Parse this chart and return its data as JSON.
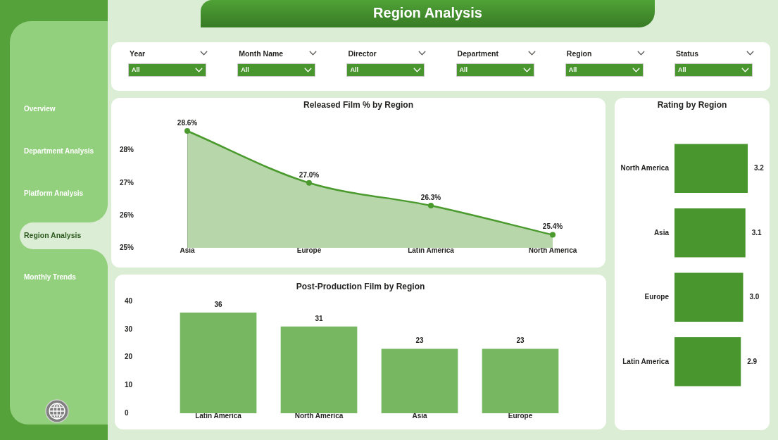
{
  "chart_data": [
    {
      "type": "other",
      "annotations": [
        "Overview",
        "Department Analysis",
        "Platform Analysis",
        "Region Analysis",
        "Monthly Trends"
      ]
    },
    {
      "type": "other",
      "title": "Region Analysis",
      "annotations": [
        "Year",
        "All",
        "Month Name",
        "All",
        "Director",
        "All",
        "Department",
        "All",
        "Region",
        "All",
        "Status",
        "All"
      ]
    },
    {
      "type": "area",
      "title": "Released Film % by Region",
      "categories": [
        "Asia",
        "Europe",
        "Latin America",
        "North America"
      ],
      "values": [
        28.6,
        27.0,
        26.3,
        25.4
      ],
      "value_labels": [
        "28.6%",
        "27.0%",
        "26.3%",
        "25.4%"
      ],
      "color": "#4a9a2e",
      "marker": "circle",
      "line_style": "solid",
      "ylim": [
        25,
        28.6
      ],
      "yticks": [
        {
          "value": 25,
          "label": "25%"
        },
        {
          "value": 26,
          "label": "26%"
        },
        {
          "value": 27,
          "label": "27%"
        },
        {
          "value": 28,
          "label": "28%"
        }
      ]
    },
    {
      "type": "bar",
      "title": "Post-Production Film by Region",
      "categories": [
        "Latin America",
        "North America",
        "Asia",
        "Europe"
      ],
      "values": [
        36,
        31,
        23,
        23
      ],
      "color": "#77b762",
      "data_labels": true,
      "ylim": [
        0,
        40
      ],
      "yticks": [
        0,
        10,
        20,
        30,
        40
      ]
    },
    {
      "type": "bar",
      "orientation": "horizontal",
      "title": "Rating by Region",
      "categories": [
        "North America",
        "Asia",
        "Europe",
        "Latin America"
      ],
      "values": [
        3.2,
        3.1,
        3.0,
        2.9
      ],
      "value_labels": [
        "3.2",
        "3.1",
        "3.0",
        "2.9"
      ],
      "color": "#4a962e",
      "tick_labels": "y"
    }
  ]
}
